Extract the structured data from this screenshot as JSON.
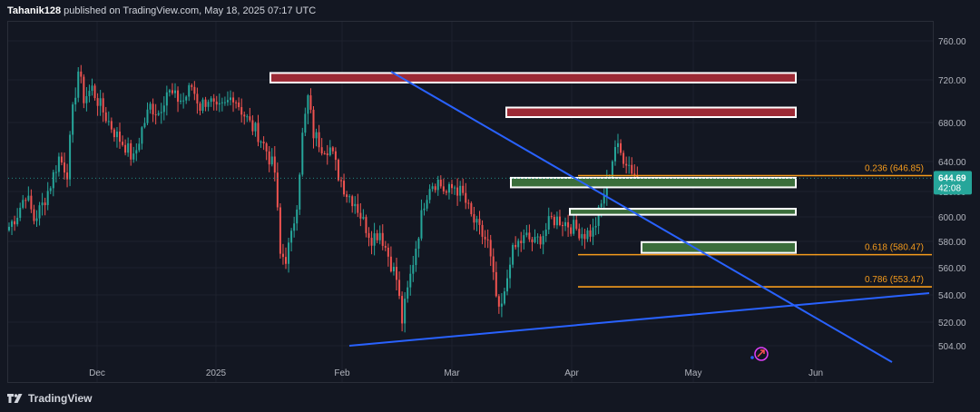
{
  "header": {
    "author": "Tahanik128",
    "published_text": "published on TradingView.com, May 18, 2025 07:17 UTC"
  },
  "footer": {
    "brand": "TradingView"
  },
  "colors": {
    "background": "#131722",
    "grid": "#1e222d",
    "up": "#26a69a",
    "down": "#ef5350",
    "fib": "#f59b1c",
    "trendline": "#2962ff",
    "supply_zone": "#9c2a35",
    "demand_zone": "#3b6e3b",
    "price_tag": "#26a69a"
  },
  "chart_data": {
    "type": "candlestick",
    "x_labels": [
      "Dec",
      "2025",
      "Feb",
      "Mar",
      "Apr",
      "May",
      "Jun"
    ],
    "y_ticks": [
      "760.00",
      "720.00",
      "680.00",
      "640.00",
      "620.00",
      "600.00",
      "580.00",
      "560.00",
      "540.00",
      "520.00",
      "504.00"
    ],
    "ylim": [
      490,
      770
    ],
    "last_price": "644.69",
    "countdown": "42:08",
    "fib_levels": [
      {
        "label": "0.236 (646.85)",
        "value": 646.85
      },
      {
        "label": "0.618 (580.47)",
        "value": 580.47
      },
      {
        "label": "0.786 (553.47)",
        "value": 553.47
      }
    ],
    "supply_zones": [
      {
        "top": 733,
        "bottom": 725
      },
      {
        "top": 704,
        "bottom": 696
      }
    ],
    "demand_zones": [
      {
        "top": 645,
        "bottom": 637
      },
      {
        "top": 619,
        "bottom": 614
      },
      {
        "top": 591,
        "bottom": 582
      }
    ],
    "series_anchors": [
      [
        0,
        604
      ],
      [
        3,
        615
      ],
      [
        6,
        632
      ],
      [
        9,
        610
      ],
      [
        12,
        622
      ],
      [
        15,
        640
      ],
      [
        18,
        662
      ],
      [
        21,
        650
      ],
      [
        23,
        700
      ],
      [
        25,
        735
      ],
      [
        27,
        712
      ],
      [
        30,
        720
      ],
      [
        33,
        705
      ],
      [
        36,
        692
      ],
      [
        39,
        680
      ],
      [
        42,
        672
      ],
      [
        45,
        660
      ],
      [
        48,
        686
      ],
      [
        51,
        705
      ],
      [
        54,
        700
      ],
      [
        57,
        718
      ],
      [
        60,
        712
      ],
      [
        63,
        710
      ],
      [
        66,
        722
      ],
      [
        69,
        705
      ],
      [
        72,
        712
      ],
      [
        75,
        700
      ],
      [
        78,
        705
      ],
      [
        81,
        715
      ],
      [
        84,
        702
      ],
      [
        87,
        690
      ],
      [
        90,
        682
      ],
      [
        93,
        668
      ],
      [
        96,
        650
      ],
      [
        98,
        580
      ],
      [
        100,
        578
      ],
      [
        102,
        595
      ],
      [
        104,
        625
      ],
      [
        106,
        680
      ],
      [
        108,
        712
      ],
      [
        110,
        682
      ],
      [
        113,
        672
      ],
      [
        116,
        670
      ],
      [
        119,
        648
      ],
      [
        122,
        632
      ],
      [
        125,
        625
      ],
      [
        128,
        608
      ],
      [
        131,
        595
      ],
      [
        134,
        600
      ],
      [
        137,
        580
      ],
      [
        140,
        560
      ],
      [
        142,
        525
      ],
      [
        144,
        550
      ],
      [
        146,
        575
      ],
      [
        148,
        600
      ],
      [
        150,
        625
      ],
      [
        152,
        640
      ],
      [
        155,
        642
      ],
      [
        158,
        632
      ],
      [
        161,
        638
      ],
      [
        164,
        630
      ],
      [
        167,
        612
      ],
      [
        170,
        600
      ],
      [
        173,
        590
      ],
      [
        175,
        560
      ],
      [
        177,
        530
      ],
      [
        179,
        545
      ],
      [
        181,
        578
      ],
      [
        184,
        590
      ],
      [
        187,
        595
      ],
      [
        190,
        590
      ],
      [
        193,
        598
      ],
      [
        196,
        610
      ],
      [
        199,
        610
      ],
      [
        202,
        606
      ],
      [
        205,
        602
      ],
      [
        208,
        598
      ],
      [
        211,
        600
      ],
      [
        214,
        622
      ],
      [
        217,
        650
      ],
      [
        219,
        672
      ],
      [
        221,
        665
      ],
      [
        223,
        660
      ],
      [
        225,
        652
      ],
      [
        227,
        645
      ]
    ],
    "trendlines": [
      {
        "from": [
          98,
          504
        ],
        "to": [
          290,
          542
        ]
      },
      {
        "from": [
          113,
          730
        ],
        "to": [
          260,
          504
        ]
      }
    ]
  }
}
